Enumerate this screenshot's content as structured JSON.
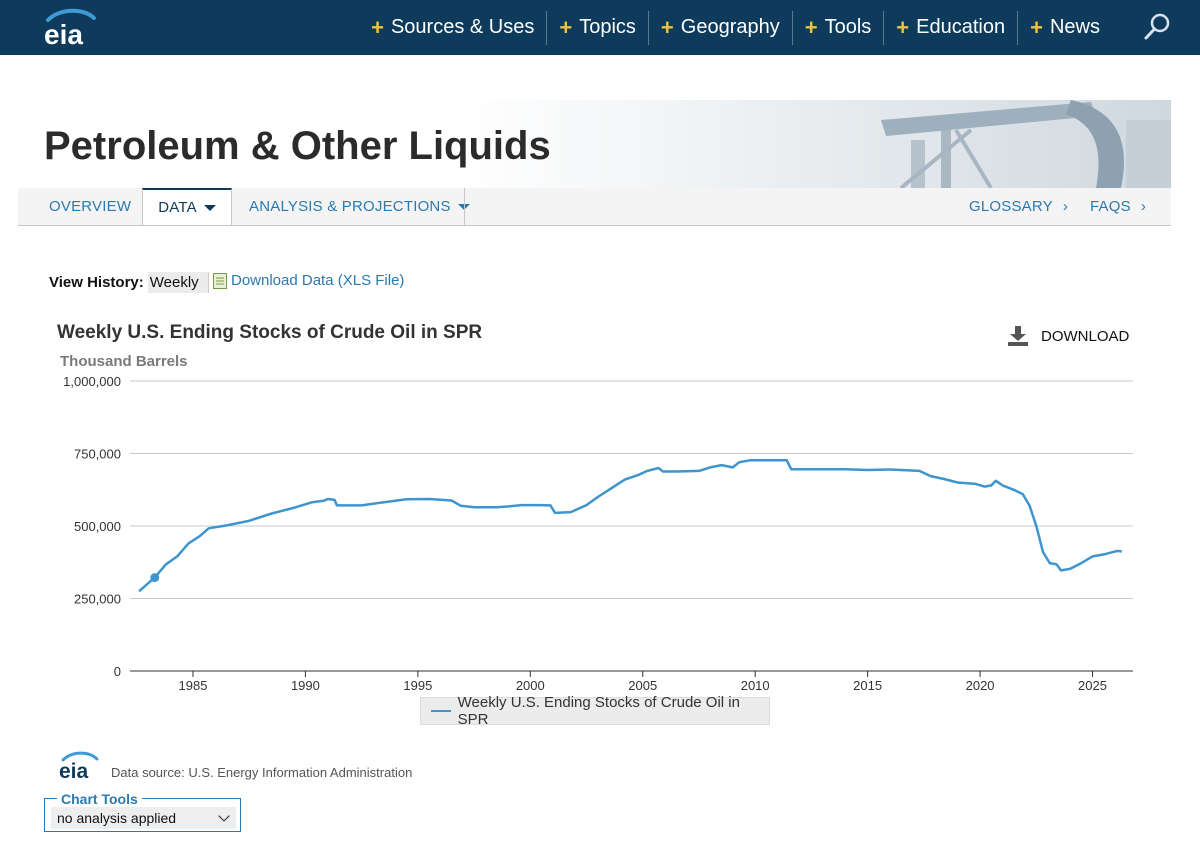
{
  "nav": {
    "logo_text": "eia",
    "items": [
      {
        "label": "Sources & Uses"
      },
      {
        "label": "Topics"
      },
      {
        "label": "Geography"
      },
      {
        "label": "Tools"
      },
      {
        "label": "Education"
      },
      {
        "label": "News"
      }
    ]
  },
  "banner": {
    "title": "Petroleum & Other Liquids"
  },
  "tabs": {
    "overview": "OVERVIEW",
    "data": "DATA",
    "analysis": "ANALYSIS & PROJECTIONS",
    "glossary": "GLOSSARY",
    "faqs": "FAQS"
  },
  "view_history": {
    "label": "View History:",
    "value": "Weekly"
  },
  "download_data": "Download Data (XLS File)",
  "download_button": "DOWNLOAD",
  "source": {
    "logo_text": "eia",
    "text": "Data source: U.S. Energy Information Administration"
  },
  "chart_tools": {
    "label": "Chart Tools",
    "value": "no analysis applied"
  },
  "colors": {
    "nav_bg": "#0e3b5b",
    "accent_plus": "#f3c238",
    "link": "#2a7ab0",
    "series": "#3e95cd"
  },
  "chart_data": {
    "type": "line",
    "title": "Weekly U.S. Ending Stocks of Crude Oil in SPR",
    "ylabel": "Thousand Barrels",
    "xlabel": "",
    "ylim": [
      0,
      1000000
    ],
    "xlim": [
      1982.2,
      2026.8
    ],
    "yticks": [
      0,
      250000,
      500000,
      750000,
      1000000
    ],
    "ytick_labels": [
      "0",
      "250,000",
      "500,000",
      "750,000",
      "1,000,000"
    ],
    "xticks": [
      1985,
      1990,
      1995,
      2000,
      2005,
      2010,
      2015,
      2020,
      2025
    ],
    "xtick_labels": [
      "1985",
      "1990",
      "1995",
      "2000",
      "2005",
      "2010",
      "2015",
      "2020",
      "2025"
    ],
    "grid": "horizontal",
    "legend": "bottom",
    "series": [
      {
        "name": "Weekly U.S. Ending Stocks of Crude Oil in SPR",
        "color": "#3e95cd",
        "marker": {
          "x": 1983.3,
          "y": 322000
        },
        "points": [
          [
            1982.6,
            275000
          ],
          [
            1983.3,
            322000
          ],
          [
            1983.8,
            368000
          ],
          [
            1984.3,
            395000
          ],
          [
            1984.8,
            440000
          ],
          [
            1985.3,
            465000
          ],
          [
            1985.7,
            492000
          ],
          [
            1986.5,
            502000
          ],
          [
            1987.5,
            518000
          ],
          [
            1988.5,
            543000
          ],
          [
            1989.5,
            563000
          ],
          [
            1990.3,
            582000
          ],
          [
            1990.8,
            587000
          ],
          [
            1991.0,
            593000
          ],
          [
            1991.3,
            590000
          ],
          [
            1991.4,
            571000
          ],
          [
            1992.5,
            571000
          ],
          [
            1993.5,
            582000
          ],
          [
            1994.5,
            592000
          ],
          [
            1995.5,
            593000
          ],
          [
            1996.5,
            588000
          ],
          [
            1996.9,
            570000
          ],
          [
            1997.5,
            565000
          ],
          [
            1998.5,
            565000
          ],
          [
            1999.1,
            568000
          ],
          [
            1999.6,
            572000
          ],
          [
            2000.4,
            572000
          ],
          [
            2000.9,
            571000
          ],
          [
            2001.1,
            545000
          ],
          [
            2001.8,
            548000
          ],
          [
            2002.5,
            572000
          ],
          [
            2003.0,
            600000
          ],
          [
            2003.6,
            630000
          ],
          [
            2004.2,
            660000
          ],
          [
            2004.8,
            676000
          ],
          [
            2005.2,
            690000
          ],
          [
            2005.7,
            700000
          ],
          [
            2005.9,
            688000
          ],
          [
            2006.5,
            688000
          ],
          [
            2007.5,
            690000
          ],
          [
            2008.0,
            702000
          ],
          [
            2008.5,
            710000
          ],
          [
            2009.0,
            702000
          ],
          [
            2009.3,
            720000
          ],
          [
            2009.8,
            727000
          ],
          [
            2010.5,
            727000
          ],
          [
            2011.4,
            727000
          ],
          [
            2011.6,
            696000
          ],
          [
            2013.0,
            696000
          ],
          [
            2014.0,
            696000
          ],
          [
            2015.0,
            693000
          ],
          [
            2016.0,
            695000
          ],
          [
            2017.3,
            690000
          ],
          [
            2017.8,
            672000
          ],
          [
            2018.4,
            662000
          ],
          [
            2019.0,
            650000
          ],
          [
            2019.8,
            645000
          ],
          [
            2020.2,
            636000
          ],
          [
            2020.5,
            640000
          ],
          [
            2020.7,
            656000
          ],
          [
            2021.0,
            640000
          ],
          [
            2021.5,
            625000
          ],
          [
            2021.9,
            610000
          ],
          [
            2022.2,
            570000
          ],
          [
            2022.5,
            500000
          ],
          [
            2022.8,
            410000
          ],
          [
            2023.1,
            372000
          ],
          [
            2023.4,
            368000
          ],
          [
            2023.6,
            347000
          ],
          [
            2024.0,
            352000
          ],
          [
            2024.5,
            372000
          ],
          [
            2025.0,
            395000
          ],
          [
            2025.5,
            402000
          ],
          [
            2026.1,
            414000
          ],
          [
            2026.3,
            412000
          ]
        ]
      }
    ]
  }
}
